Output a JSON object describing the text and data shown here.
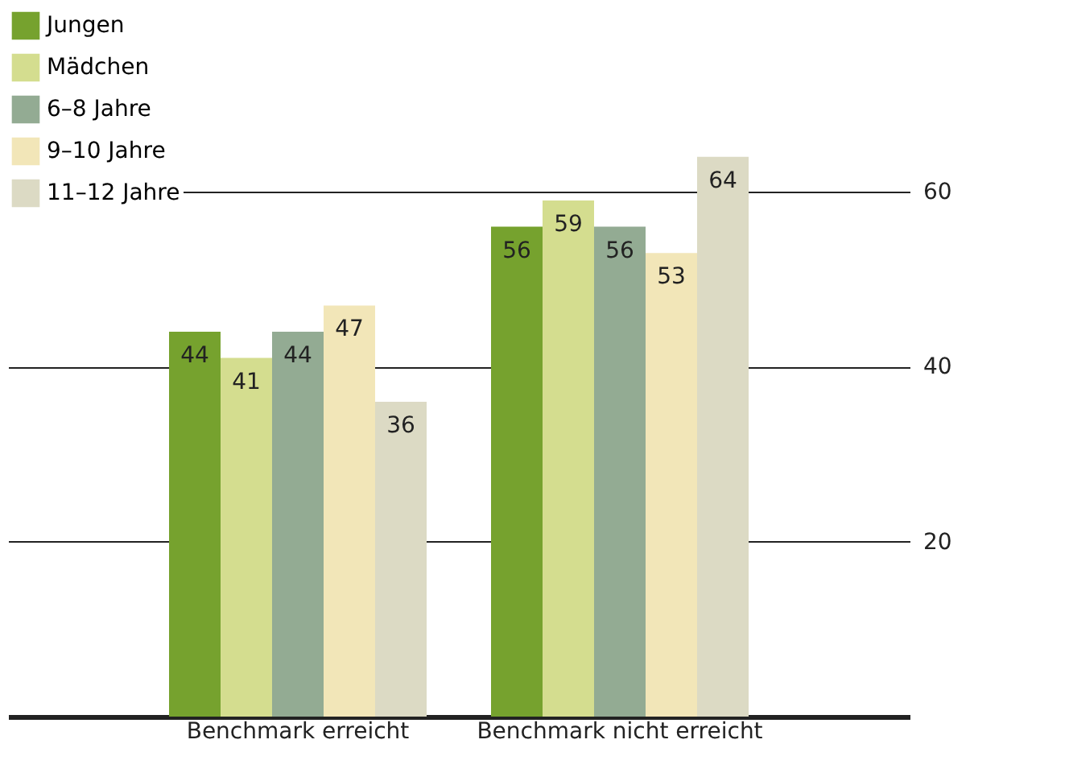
{
  "chart_data": {
    "type": "bar",
    "categories": [
      "Benchmark erreicht",
      "Benchmark nicht erreicht"
    ],
    "series": [
      {
        "name": "Jungen",
        "color": "#76a22e",
        "values": [
          44,
          56
        ]
      },
      {
        "name": "Mädchen",
        "color": "#d4dd8f",
        "values": [
          41,
          59
        ]
      },
      {
        "name": "6–8 Jahre",
        "color": "#93ab93",
        "values": [
          44,
          56
        ]
      },
      {
        "name": "9–10 Jahre",
        "color": "#f2e6b8",
        "values": [
          47,
          53
        ]
      },
      {
        "name": "11–12 Jahre",
        "color": "#dcdac4",
        "values": [
          36,
          64
        ]
      }
    ],
    "ylim": [
      0,
      81
    ],
    "yticks": [
      20,
      40,
      60
    ],
    "grid": "y",
    "legend": "top left",
    "data_labels": true
  }
}
